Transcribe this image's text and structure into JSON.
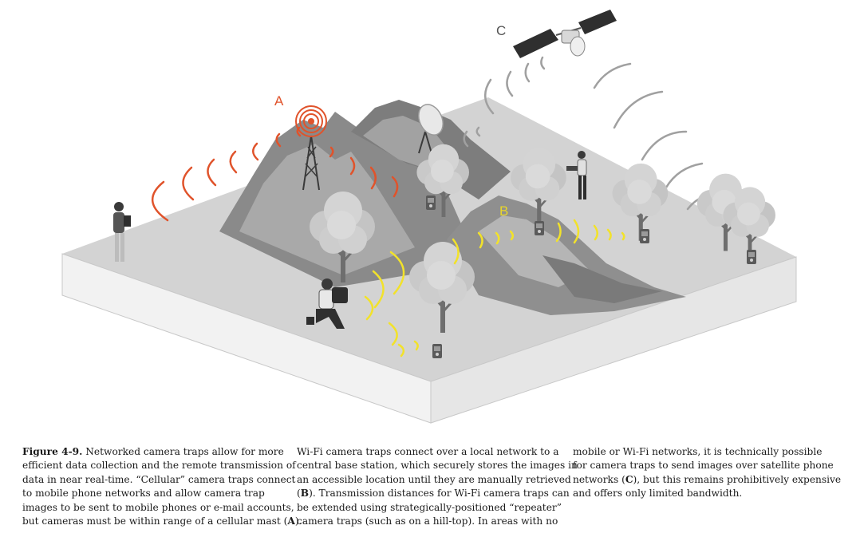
{
  "figure": {
    "labels": {
      "a": "A",
      "b": "B",
      "c": "C"
    },
    "colors": {
      "cellular": "#e0532b",
      "wifi": "#f2e22a",
      "satellite": "#a0a0a0",
      "ground": "#d2d2d2",
      "base_side": "#eeeeee",
      "mountain_dark": "#7c7c7c",
      "mountain_light": "#aaaaaa",
      "foliage": "#cfcfcf"
    }
  },
  "caption": {
    "col1": {
      "bold_lead": "Figure 4-9.",
      "lines": [
        " Networked camera traps allow for more",
        "efficient data collection and the remote transmission of",
        "data in near real-time. “Cellular” camera traps connect",
        "to mobile phone networks and allow camera trap",
        "images to be sent to mobile phones or e-mail accounts,",
        "but cameras must be within range of a cellular mast ("
      ],
      "ref": "A",
      "tail": ")."
    },
    "col2": {
      "lines": [
        "Wi-Fi camera traps connect over a local network to a",
        "central base station, which securely stores the images in",
        "an accessible location until they are manually retrieved"
      ],
      "ref_open": "(",
      "ref": "B",
      "ref_tail": "). Transmission distances for Wi-Fi camera traps can",
      "lines2": [
        "be extended using strategically-positioned “repeater”",
        "camera traps (such as on a hill-top). In areas with no"
      ]
    },
    "col3": {
      "lines": [
        "mobile or Wi-Fi networks, it is technically possible",
        "for camera traps to send images over satellite phone"
      ],
      "pre_ref": "networks (",
      "ref": "C",
      "post_ref": "), but this remains prohibitively expensive",
      "lines2": [
        "and offers only limited bandwidth."
      ]
    }
  }
}
